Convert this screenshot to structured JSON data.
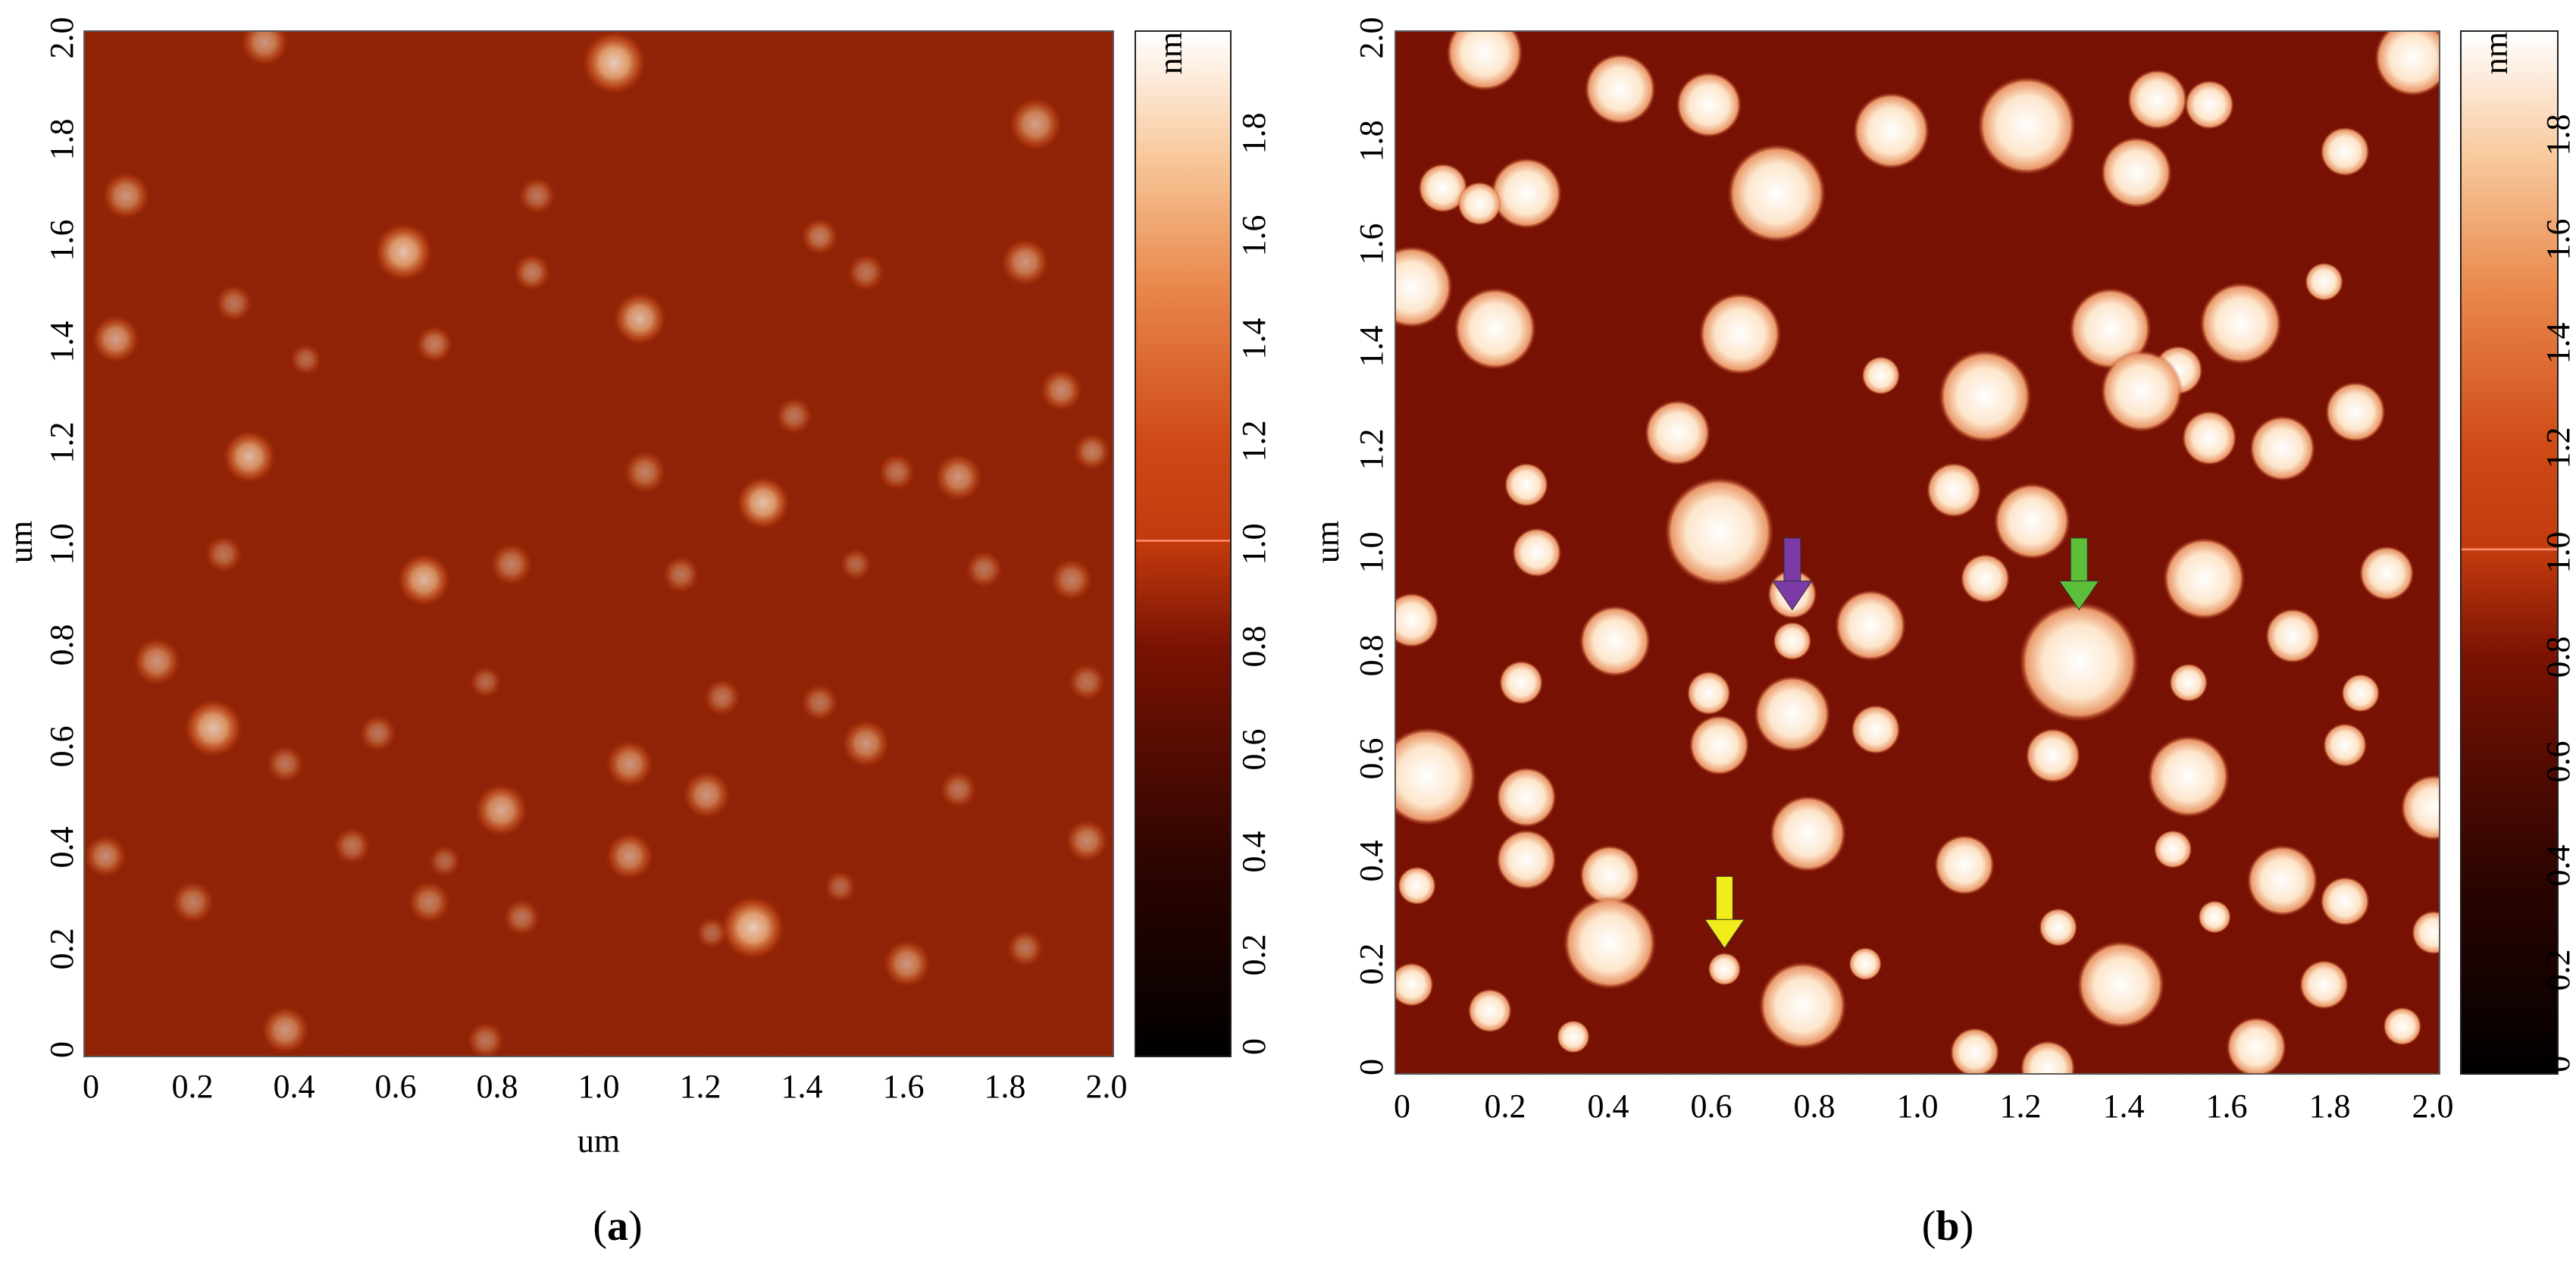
{
  "panels": [
    {
      "id": "a",
      "caption_open": "(",
      "caption_letter": "a",
      "caption_close": ")",
      "y_axis_label": "um",
      "x_axis_label": "um",
      "y_ticks": [
        "0",
        "0.2",
        "0.4",
        "0.6",
        "0.8",
        "1.0",
        "1.2",
        "1.4",
        "1.6",
        "1.8",
        "2.0"
      ],
      "x_ticks": [
        "0",
        "0.2",
        "0.4",
        "0.6",
        "0.8",
        "1.0",
        "1.2",
        "1.4",
        "1.6",
        "1.8",
        "2.0"
      ],
      "colorbar_unit": "nm",
      "colorbar_ticks": [
        "0",
        "0.2",
        "0.4",
        "0.6",
        "0.8",
        "1.0",
        "1.2",
        "1.4",
        "1.6",
        "1.8"
      ],
      "background_color": "#9c2a08",
      "particles": [
        [
          0.35,
          1.98,
          0.045,
          0.55
        ],
        [
          1.03,
          1.94,
          0.06,
          0.8
        ],
        [
          1.85,
          1.82,
          0.05,
          0.6
        ],
        [
          0.08,
          1.68,
          0.045,
          0.55
        ],
        [
          0.88,
          1.68,
          0.035,
          0.4
        ],
        [
          0.62,
          1.57,
          0.055,
          0.75
        ],
        [
          1.43,
          1.6,
          0.035,
          0.45
        ],
        [
          1.52,
          1.53,
          0.035,
          0.4
        ],
        [
          1.83,
          1.55,
          0.045,
          0.55
        ],
        [
          0.87,
          1.53,
          0.035,
          0.45
        ],
        [
          0.29,
          1.47,
          0.035,
          0.4
        ],
        [
          1.08,
          1.44,
          0.05,
          0.7
        ],
        [
          0.06,
          1.4,
          0.045,
          0.6
        ],
        [
          0.68,
          1.39,
          0.035,
          0.45
        ],
        [
          1.9,
          1.3,
          0.04,
          0.5
        ],
        [
          0.43,
          1.36,
          0.03,
          0.35
        ],
        [
          1.38,
          1.25,
          0.035,
          0.4
        ],
        [
          1.09,
          1.14,
          0.04,
          0.45
        ],
        [
          1.58,
          1.14,
          0.035,
          0.4
        ],
        [
          0.32,
          1.17,
          0.05,
          0.7
        ],
        [
          1.7,
          1.13,
          0.045,
          0.55
        ],
        [
          1.96,
          1.18,
          0.035,
          0.45
        ],
        [
          1.32,
          1.08,
          0.05,
          0.75
        ],
        [
          0.83,
          0.96,
          0.04,
          0.45
        ],
        [
          0.27,
          0.98,
          0.035,
          0.4
        ],
        [
          0.66,
          0.93,
          0.05,
          0.7
        ],
        [
          1.16,
          0.94,
          0.035,
          0.4
        ],
        [
          1.5,
          0.96,
          0.03,
          0.35
        ],
        [
          1.75,
          0.95,
          0.035,
          0.4
        ],
        [
          1.92,
          0.93,
          0.04,
          0.45
        ],
        [
          0.14,
          0.77,
          0.045,
          0.55
        ],
        [
          0.78,
          0.73,
          0.03,
          0.35
        ],
        [
          1.24,
          0.7,
          0.035,
          0.4
        ],
        [
          1.43,
          0.69,
          0.035,
          0.4
        ],
        [
          1.95,
          0.73,
          0.035,
          0.4
        ],
        [
          0.25,
          0.64,
          0.055,
          0.75
        ],
        [
          0.57,
          0.63,
          0.035,
          0.4
        ],
        [
          0.39,
          0.57,
          0.035,
          0.4
        ],
        [
          1.06,
          0.57,
          0.045,
          0.55
        ],
        [
          1.52,
          0.61,
          0.045,
          0.55
        ],
        [
          1.7,
          0.52,
          0.035,
          0.4
        ],
        [
          0.81,
          0.48,
          0.05,
          0.65
        ],
        [
          1.21,
          0.51,
          0.045,
          0.55
        ],
        [
          0.52,
          0.41,
          0.035,
          0.4
        ],
        [
          0.04,
          0.39,
          0.04,
          0.5
        ],
        [
          1.06,
          0.39,
          0.045,
          0.55
        ],
        [
          0.7,
          0.38,
          0.03,
          0.35
        ],
        [
          1.95,
          0.42,
          0.04,
          0.5
        ],
        [
          0.21,
          0.3,
          0.04,
          0.45
        ],
        [
          0.67,
          0.3,
          0.04,
          0.45
        ],
        [
          0.85,
          0.27,
          0.035,
          0.4
        ],
        [
          1.3,
          0.25,
          0.06,
          0.8
        ],
        [
          1.83,
          0.21,
          0.035,
          0.4
        ],
        [
          1.6,
          0.18,
          0.045,
          0.55
        ],
        [
          0.39,
          0.05,
          0.045,
          0.55
        ],
        [
          0.78,
          0.03,
          0.035,
          0.4
        ],
        [
          1.22,
          0.24,
          0.03,
          0.35
        ],
        [
          1.47,
          0.33,
          0.03,
          0.35
        ]
      ]
    },
    {
      "id": "b",
      "caption_open": "(",
      "caption_letter": "b",
      "caption_close": ")",
      "y_axis_label": "um",
      "y_ticks": [
        "0",
        "0.2",
        "0.4",
        "0.6",
        "0.8",
        "1.0",
        "1.2",
        "1.4",
        "1.6",
        "1.8",
        "2.0"
      ],
      "x_ticks": [
        "0",
        "0.2",
        "0.4",
        "0.6",
        "0.8",
        "1.0",
        "1.2",
        "1.4",
        "1.6",
        "1.8",
        "2.0"
      ],
      "colorbar_unit": "nm",
      "colorbar_ticks": [
        "0",
        "0.2",
        "0.4",
        "0.6",
        "0.8",
        "1.0",
        "1.2",
        "1.4",
        "1.6",
        "1.8"
      ],
      "background_color": "#7e1505",
      "arrows": [
        {
          "name": "purple-arrow",
          "color": "#7b3aa6",
          "x": 0.76,
          "y": 0.89
        },
        {
          "name": "green-arrow",
          "color": "#5cbf3a",
          "x": 1.31,
          "y": 0.89
        },
        {
          "name": "yellow-arrow",
          "color": "#f2ec1a",
          "x": 0.63,
          "y": 0.24
        }
      ],
      "particles": [
        [
          0.17,
          1.96,
          0.07,
          1
        ],
        [
          0.43,
          1.89,
          0.065,
          1
        ],
        [
          0.6,
          1.86,
          0.06,
          1
        ],
        [
          0.95,
          1.81,
          0.07,
          1
        ],
        [
          1.21,
          1.82,
          0.09,
          1
        ],
        [
          1.46,
          1.87,
          0.055,
          1
        ],
        [
          1.95,
          1.95,
          0.07,
          1
        ],
        [
          1.82,
          1.77,
          0.045,
          1
        ],
        [
          0.09,
          1.7,
          0.045,
          1
        ],
        [
          0.25,
          1.69,
          0.065,
          1
        ],
        [
          0.16,
          1.67,
          0.04,
          1
        ],
        [
          0.73,
          1.69,
          0.09,
          1
        ],
        [
          1.42,
          1.73,
          0.065,
          1
        ],
        [
          1.56,
          1.86,
          0.045,
          1
        ],
        [
          1.78,
          1.52,
          0.035,
          1
        ],
        [
          0.03,
          1.51,
          0.075,
          1
        ],
        [
          0.19,
          1.43,
          0.075,
          1
        ],
        [
          0.66,
          1.42,
          0.075,
          1
        ],
        [
          1.37,
          1.43,
          0.075,
          1
        ],
        [
          1.62,
          1.44,
          0.075,
          1
        ],
        [
          1.5,
          1.35,
          0.045,
          1
        ],
        [
          0.93,
          1.34,
          0.035,
          1
        ],
        [
          1.13,
          1.3,
          0.085,
          1
        ],
        [
          1.43,
          1.31,
          0.075,
          1
        ],
        [
          0.54,
          1.23,
          0.06,
          1
        ],
        [
          1.84,
          1.27,
          0.055,
          1
        ],
        [
          0.25,
          1.13,
          0.04,
          1
        ],
        [
          1.56,
          1.22,
          0.05,
          1
        ],
        [
          1.7,
          1.2,
          0.06,
          1
        ],
        [
          1.07,
          1.12,
          0.05,
          1
        ],
        [
          0.62,
          1.04,
          0.1,
          1
        ],
        [
          1.22,
          1.06,
          0.07,
          1
        ],
        [
          0.27,
          1.0,
          0.045,
          1
        ],
        [
          1.9,
          0.96,
          0.05,
          1
        ],
        [
          0.76,
          0.92,
          0.045,
          1
        ],
        [
          1.55,
          0.95,
          0.075,
          1
        ],
        [
          1.13,
          0.95,
          0.045,
          1
        ],
        [
          0.42,
          0.83,
          0.065,
          1
        ],
        [
          0.03,
          0.87,
          0.05,
          1
        ],
        [
          0.91,
          0.86,
          0.065,
          1
        ],
        [
          1.31,
          0.79,
          0.11,
          1
        ],
        [
          1.72,
          0.84,
          0.05,
          1
        ],
        [
          0.76,
          0.83,
          0.035,
          1
        ],
        [
          0.24,
          0.75,
          0.04,
          1
        ],
        [
          0.6,
          0.73,
          0.04,
          1
        ],
        [
          0.76,
          0.69,
          0.07,
          1
        ],
        [
          0.92,
          0.66,
          0.045,
          1
        ],
        [
          1.52,
          0.75,
          0.035,
          1
        ],
        [
          1.85,
          0.73,
          0.035,
          1
        ],
        [
          0.62,
          0.63,
          0.055,
          1
        ],
        [
          1.26,
          0.61,
          0.05,
          1
        ],
        [
          0.06,
          0.57,
          0.09,
          1
        ],
        [
          0.25,
          0.53,
          0.055,
          1
        ],
        [
          1.52,
          0.57,
          0.075,
          1
        ],
        [
          1.99,
          0.51,
          0.06,
          1
        ],
        [
          1.82,
          0.63,
          0.04,
          1
        ],
        [
          0.79,
          0.46,
          0.07,
          1
        ],
        [
          0.25,
          0.41,
          0.055,
          1
        ],
        [
          1.09,
          0.4,
          0.055,
          1
        ],
        [
          1.7,
          0.37,
          0.065,
          1
        ],
        [
          0.41,
          0.38,
          0.055,
          1
        ],
        [
          1.49,
          0.43,
          0.035,
          1
        ],
        [
          1.82,
          0.33,
          0.045,
          1
        ],
        [
          0.04,
          0.36,
          0.035,
          1
        ],
        [
          0.41,
          0.25,
          0.085,
          1
        ],
        [
          1.39,
          0.17,
          0.08,
          1
        ],
        [
          0.78,
          0.13,
          0.08,
          1
        ],
        [
          1.78,
          0.17,
          0.045,
          1
        ],
        [
          0.03,
          0.17,
          0.04,
          1
        ],
        [
          0.18,
          0.12,
          0.04,
          1
        ],
        [
          1.11,
          0.04,
          0.045,
          1
        ],
        [
          1.25,
          0.01,
          0.05,
          1
        ],
        [
          1.65,
          0.05,
          0.055,
          1
        ],
        [
          0.63,
          0.2,
          0.03,
          1
        ],
        [
          1.27,
          0.28,
          0.035,
          1
        ],
        [
          1.99,
          0.27,
          0.04,
          1
        ],
        [
          0.9,
          0.21,
          0.03,
          1
        ],
        [
          1.57,
          0.3,
          0.03,
          1
        ],
        [
          1.93,
          0.09,
          0.035,
          1
        ],
        [
          0.34,
          0.07,
          0.03,
          1
        ]
      ]
    }
  ]
}
